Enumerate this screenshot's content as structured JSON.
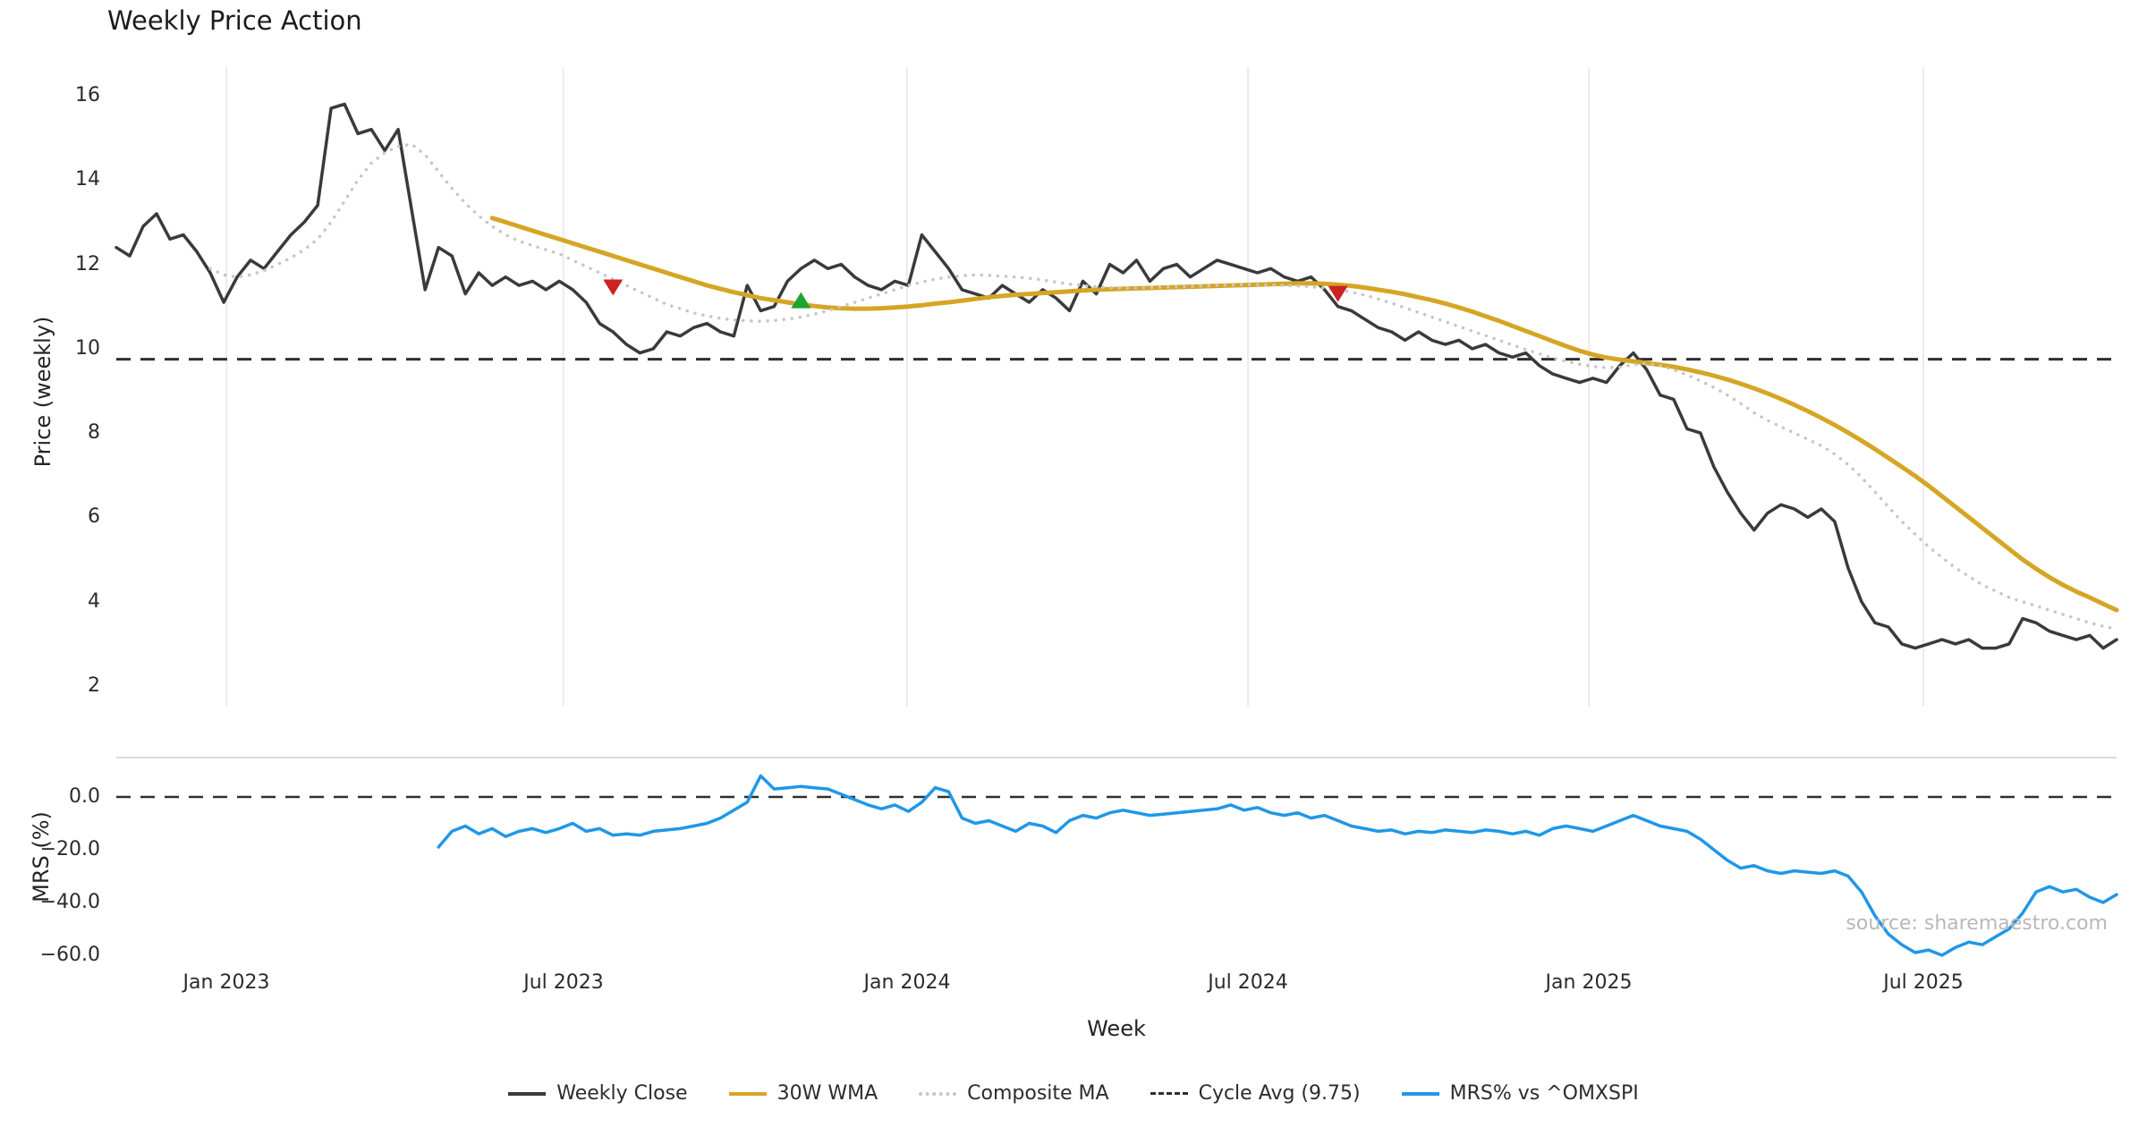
{
  "source_note": "source: sharemaestro.com",
  "colors": {
    "close": "#3a3a3a",
    "wma": "#d5a524",
    "composite": "#c6c6c6",
    "cycle": "#2e2e2e",
    "mrs": "#1f97e8",
    "buy": "#1fa32f",
    "sell": "#cc2222",
    "grid": "#ebebeb",
    "panel_border": "#d9d9d9"
  },
  "legend": {
    "items": [
      {
        "key": "weekly-close",
        "label": "Weekly Close",
        "style": "solid",
        "color_key": "close"
      },
      {
        "key": "wma-30w",
        "label": "30W WMA",
        "style": "solid",
        "color_key": "wma"
      },
      {
        "key": "composite-ma",
        "label": "Composite MA",
        "style": "dotted",
        "color_key": "composite"
      },
      {
        "key": "cycle-avg",
        "label": "Cycle Avg (9.75)",
        "style": "dashed",
        "color_key": "cycle"
      },
      {
        "key": "mrs",
        "label": "MRS% vs ^OMXSPI",
        "style": "solid",
        "color_key": "mrs"
      }
    ]
  },
  "chart_data": {
    "type": "line",
    "title": "Weekly Price Action",
    "xlabel": "Week",
    "n_weeks": 150,
    "x_tick_labels": [
      "Jan 2023",
      "Jul 2023",
      "Jan 2024",
      "Jul 2024",
      "Jan 2025",
      "Jul 2025"
    ],
    "x_tick_weeks": [
      8.2,
      33.3,
      58.9,
      84.3,
      109.7,
      134.6
    ],
    "panels": [
      {
        "name": "price",
        "ylabel": "Price (weekly)",
        "ylim": [
          1.5,
          16.7
        ],
        "grid": "vertical-only",
        "yticks": [
          16,
          14,
          12,
          10,
          8,
          6,
          4,
          2
        ],
        "ytick_labels": [
          "16",
          "14",
          "12",
          "10",
          "8",
          "6",
          "4",
          "2"
        ]
      },
      {
        "name": "mrs",
        "ylabel": "MRS (%)",
        "ylim": [
          -64,
          15
        ],
        "grid": "off",
        "yticks": [
          0,
          -20,
          -40,
          -60
        ],
        "ytick_labels": [
          "0.0",
          "−20.0",
          "−40.0",
          "−60.0"
        ]
      }
    ],
    "reference_lines": [
      {
        "name": "Cycle Avg (9.75)",
        "panel": "price",
        "value": 9.75,
        "style": "dashed",
        "color_key": "cycle"
      },
      {
        "name": "zero-line",
        "panel": "mrs",
        "value": 0,
        "style": "dashed",
        "color_key": "cycle"
      }
    ],
    "markers": [
      {
        "signal": "sell",
        "week": 37,
        "price": 11.45
      },
      {
        "signal": "buy",
        "week": 51,
        "price": 11.15
      },
      {
        "signal": "sell",
        "week": 91,
        "price": 11.3
      }
    ],
    "series": [
      {
        "name": "Weekly Close",
        "panel": "price",
        "style": "solid",
        "color_key": "close",
        "start_week": 0,
        "values": [
          12.4,
          12.2,
          12.9,
          13.2,
          12.6,
          12.7,
          12.3,
          11.8,
          11.1,
          11.7,
          12.1,
          11.9,
          12.3,
          12.7,
          13.0,
          13.4,
          15.7,
          15.8,
          15.1,
          15.2,
          14.7,
          15.2,
          13.3,
          11.4,
          12.4,
          12.2,
          11.3,
          11.8,
          11.5,
          11.7,
          11.5,
          11.6,
          11.4,
          11.6,
          11.4,
          11.1,
          10.6,
          10.4,
          10.1,
          9.9,
          10.0,
          10.4,
          10.3,
          10.5,
          10.6,
          10.4,
          10.3,
          11.5,
          10.9,
          11.0,
          11.6,
          11.9,
          12.1,
          11.9,
          12.0,
          11.7,
          11.5,
          11.4,
          11.6,
          11.5,
          12.7,
          12.3,
          11.9,
          11.4,
          11.3,
          11.2,
          11.5,
          11.3,
          11.1,
          11.4,
          11.2,
          10.9,
          11.6,
          11.3,
          12.0,
          11.8,
          12.1,
          11.6,
          11.9,
          12.0,
          11.7,
          11.9,
          12.1,
          12.0,
          11.9,
          11.8,
          11.9,
          11.7,
          11.6,
          11.7,
          11.4,
          11.0,
          10.9,
          10.7,
          10.5,
          10.4,
          10.2,
          10.4,
          10.2,
          10.1,
          10.2,
          10.0,
          10.1,
          9.9,
          9.8,
          9.9,
          9.6,
          9.4,
          9.3,
          9.2,
          9.3,
          9.2,
          9.6,
          9.9,
          9.5,
          8.9,
          8.8,
          8.1,
          8.0,
          7.2,
          6.6,
          6.1,
          5.7,
          6.1,
          6.3,
          6.2,
          6.0,
          6.2,
          5.9,
          4.8,
          4.0,
          3.5,
          3.4,
          3.0,
          2.9,
          3.0,
          3.1,
          3.0,
          3.1,
          2.9,
          2.9,
          3.0,
          3.6,
          3.5,
          3.3,
          3.2,
          3.1,
          3.2,
          2.9,
          3.1
        ]
      },
      {
        "name": "30W WMA",
        "panel": "price",
        "style": "solid",
        "color_key": "wma",
        "start_week": 28,
        "values": [
          13.1,
          13.0,
          12.9,
          12.8,
          12.7,
          12.6,
          12.5,
          12.4,
          12.3,
          12.2,
          12.1,
          12.0,
          11.9,
          11.8,
          11.7,
          11.6,
          11.5,
          11.42,
          11.34,
          11.27,
          11.2,
          11.15,
          11.1,
          11.05,
          11.01,
          10.98,
          10.96,
          10.95,
          10.95,
          10.96,
          10.98,
          11.0,
          11.03,
          11.07,
          11.1,
          11.14,
          11.18,
          11.22,
          11.25,
          11.28,
          11.3,
          11.32,
          11.34,
          11.36,
          11.38,
          11.4,
          11.41,
          11.42,
          11.43,
          11.44,
          11.45,
          11.46,
          11.47,
          11.48,
          11.49,
          11.5,
          11.51,
          11.52,
          11.53,
          11.54,
          11.55,
          11.55,
          11.54,
          11.52,
          11.49,
          11.45,
          11.4,
          11.35,
          11.29,
          11.22,
          11.15,
          11.07,
          10.98,
          10.88,
          10.77,
          10.66,
          10.54,
          10.42,
          10.3,
          10.18,
          10.06,
          9.95,
          9.86,
          9.79,
          9.74,
          9.7,
          9.66,
          9.62,
          9.57,
          9.51,
          9.44,
          9.36,
          9.27,
          9.17,
          9.06,
          8.94,
          8.81,
          8.67,
          8.52,
          8.36,
          8.19,
          8.01,
          7.82,
          7.62,
          7.41,
          7.2,
          6.98,
          6.75,
          6.5,
          6.25,
          6.0,
          5.75,
          5.5,
          5.25,
          5.0,
          4.78,
          4.58,
          4.4,
          4.24,
          4.1,
          3.95,
          3.8
        ]
      },
      {
        "name": "Composite MA",
        "panel": "price",
        "style": "dotted",
        "color_key": "composite",
        "start_week": 7,
        "values": [
          11.9,
          11.75,
          11.7,
          11.75,
          11.85,
          12.0,
          12.15,
          12.35,
          12.6,
          13.0,
          13.5,
          14.0,
          14.4,
          14.65,
          14.8,
          14.85,
          14.6,
          14.2,
          13.8,
          13.45,
          13.15,
          12.9,
          12.7,
          12.55,
          12.45,
          12.35,
          12.25,
          12.1,
          11.95,
          11.8,
          11.65,
          11.5,
          11.35,
          11.2,
          11.05,
          10.95,
          10.85,
          10.78,
          10.72,
          10.68,
          10.66,
          10.65,
          10.67,
          10.7,
          10.75,
          10.82,
          10.9,
          11.0,
          11.1,
          11.2,
          11.3,
          11.4,
          11.5,
          11.58,
          11.65,
          11.7,
          11.73,
          11.75,
          11.74,
          11.72,
          11.7,
          11.67,
          11.63,
          11.58,
          11.53,
          11.5,
          11.47,
          11.45,
          11.44,
          11.44,
          11.45,
          11.46,
          11.47,
          11.48,
          11.49,
          11.5,
          11.51,
          11.52,
          11.52,
          11.51,
          11.5,
          11.49,
          11.47,
          11.44,
          11.4,
          11.34,
          11.27,
          11.18,
          11.08,
          10.97,
          10.86,
          10.75,
          10.64,
          10.53,
          10.42,
          10.31,
          10.2,
          10.09,
          9.98,
          9.88,
          9.78,
          9.7,
          9.63,
          9.58,
          9.55,
          9.56,
          9.62,
          9.65,
          9.6,
          9.5,
          9.38,
          9.24,
          9.08,
          8.9,
          8.7,
          8.48,
          8.3,
          8.15,
          8.0,
          7.85,
          7.7,
          7.5,
          7.25,
          6.95,
          6.6,
          6.25,
          5.9,
          5.6,
          5.3,
          5.05,
          4.8,
          4.6,
          4.4,
          4.25,
          4.1,
          4.0,
          3.9,
          3.8,
          3.7,
          3.6,
          3.5,
          3.42,
          3.35
        ]
      },
      {
        "name": "MRS% vs ^OMXSPI",
        "panel": "mrs",
        "style": "solid",
        "color_key": "mrs",
        "start_week": 24,
        "values": [
          -19,
          -13,
          -11,
          -14,
          -12,
          -15,
          -13,
          -12,
          -13.5,
          -12,
          -10,
          -13,
          -12,
          -14.5,
          -14,
          -14.5,
          -13,
          -12.5,
          -12,
          -11,
          -10,
          -8,
          -5,
          -2,
          8,
          3,
          3.5,
          4,
          3.5,
          3,
          1,
          -1,
          -3,
          -4.5,
          -3,
          -5.5,
          -2,
          3.5,
          2,
          -8,
          -10,
          -9,
          -11,
          -13,
          -10,
          -11,
          -13.5,
          -9,
          -7,
          -8,
          -6,
          -5,
          -6,
          -7,
          -6.5,
          -6,
          -5.5,
          -5,
          -4.5,
          -3,
          -5,
          -4,
          -6,
          -7,
          -6,
          -8,
          -7,
          -9,
          -11,
          -12,
          -13,
          -12.5,
          -14,
          -13,
          -13.5,
          -12.5,
          -13,
          -13.5,
          -12.5,
          -13,
          -14,
          -13,
          -14.5,
          -12,
          -11,
          -12,
          -13,
          -11,
          -9,
          -7,
          -9,
          -11,
          -12,
          -13,
          -16,
          -20,
          -24,
          -27,
          -26,
          -28,
          -29,
          -28,
          -28.5,
          -29,
          -28,
          -30,
          -36,
          -45,
          -52,
          -56,
          -59,
          -58,
          -60,
          -57,
          -55,
          -56,
          -53,
          -50,
          -44,
          -36,
          -34,
          -36,
          -35,
          -38,
          -40,
          -37
        ]
      }
    ]
  }
}
